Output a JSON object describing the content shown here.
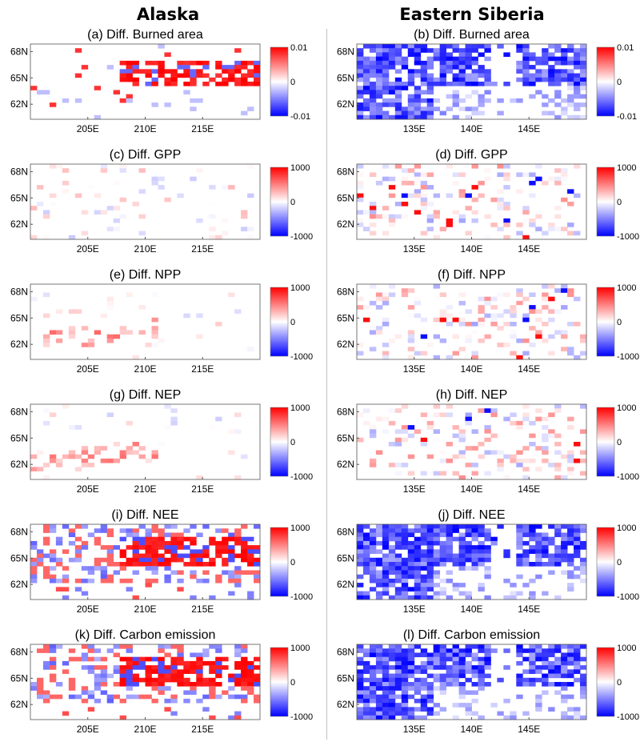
{
  "column_titles": [
    "Alaska",
    "Eastern Siberia"
  ],
  "chart_data": [
    {
      "type": "heatmap",
      "panel": "(a)",
      "title": "(a) Diff. Burned area",
      "region": "Alaska",
      "x_ticks": [
        "205E",
        "210E",
        "215E"
      ],
      "y_ticks": [
        "68N",
        "65N",
        "62N"
      ],
      "xlim": [
        200.5,
        218.5
      ],
      "ylim": [
        60.5,
        69
      ],
      "colorbar": {
        "ticks": [
          "0.01",
          "0",
          "-0.01"
        ],
        "range": [
          -0.01,
          0.01
        ],
        "colors": [
          "#0000ff",
          "#ffffff",
          "#ff0000"
        ]
      },
      "pattern": "red-dominant (increase) mainly along 64–66N, 208–218E"
    },
    {
      "type": "heatmap",
      "panel": "(b)",
      "title": "(b) Diff. Burned area",
      "region": "Eastern Siberia",
      "x_ticks": [
        "135E",
        "140E",
        "145E"
      ],
      "y_ticks": [
        "68N",
        "65N",
        "62N"
      ],
      "xlim": [
        130.5,
        148.5
      ],
      "ylim": [
        60.5,
        69
      ],
      "colorbar": {
        "ticks": [
          "0.01",
          "0",
          "-0.01"
        ],
        "range": [
          -0.01,
          0.01
        ],
        "colors": [
          "#0000ff",
          "#ffffff",
          "#ff0000"
        ]
      },
      "pattern": "blue-dominant (decrease) across most of the domain"
    },
    {
      "type": "heatmap",
      "panel": "(c)",
      "title": "(c) Diff. GPP",
      "region": "Alaska",
      "x_ticks": [
        "205E",
        "210E",
        "215E"
      ],
      "y_ticks": [
        "68N",
        "65N",
        "62N"
      ],
      "xlim": [
        200.5,
        218.5
      ],
      "ylim": [
        60.5,
        69
      ],
      "colorbar": {
        "ticks": [
          "1000",
          "0",
          "-1000"
        ],
        "range": [
          -1000,
          1000
        ],
        "colors": [
          "#0000ff",
          "#ffffff",
          "#ff0000"
        ]
      },
      "pattern": "sparse weak values"
    },
    {
      "type": "heatmap",
      "panel": "(d)",
      "title": "(d) Diff. GPP",
      "region": "Eastern Siberia",
      "x_ticks": [
        "135E",
        "140E",
        "145E"
      ],
      "y_ticks": [
        "68N",
        "65N",
        "62N"
      ],
      "xlim": [
        130.5,
        148.5
      ],
      "ylim": [
        60.5,
        69
      ],
      "colorbar": {
        "ticks": [
          "1000",
          "0",
          "-1000"
        ],
        "range": [
          -1000,
          1000
        ],
        "colors": [
          "#0000ff",
          "#ffffff",
          "#ff0000"
        ]
      },
      "pattern": "scattered mixed values"
    },
    {
      "type": "heatmap",
      "panel": "(e)",
      "title": "(e) Diff. NPP",
      "region": "Alaska",
      "x_ticks": [
        "205E",
        "210E",
        "215E"
      ],
      "y_ticks": [
        "68N",
        "65N",
        "62N"
      ],
      "xlim": [
        200.5,
        218.5
      ],
      "ylim": [
        60.5,
        69
      ],
      "colorbar": {
        "ticks": [
          "1000",
          "0",
          "-1000"
        ],
        "range": [
          -1000,
          1000
        ],
        "colors": [
          "#0000ff",
          "#ffffff",
          "#ff0000"
        ]
      },
      "pattern": "weak positive band along 62–64N"
    },
    {
      "type": "heatmap",
      "panel": "(f)",
      "title": "(f) Diff. NPP",
      "region": "Eastern Siberia",
      "x_ticks": [
        "135E",
        "140E",
        "145E"
      ],
      "y_ticks": [
        "68N",
        "65N",
        "62N"
      ],
      "xlim": [
        130.5,
        148.5
      ],
      "ylim": [
        60.5,
        69
      ],
      "colorbar": {
        "ticks": [
          "1000",
          "0",
          "-1000"
        ],
        "range": [
          -1000,
          1000
        ],
        "colors": [
          "#0000ff",
          "#ffffff",
          "#ff0000"
        ]
      },
      "pattern": "scattered mixed values"
    },
    {
      "type": "heatmap",
      "panel": "(g)",
      "title": "(g) Diff. NEP",
      "region": "Alaska",
      "x_ticks": [
        "205E",
        "210E",
        "215E"
      ],
      "y_ticks": [
        "68N",
        "65N",
        "62N"
      ],
      "xlim": [
        200.5,
        218.5
      ],
      "ylim": [
        60.5,
        69
      ],
      "colorbar": {
        "ticks": [
          "1000",
          "0",
          "-1000"
        ],
        "range": [
          -1000,
          1000
        ],
        "colors": [
          "#0000ff",
          "#ffffff",
          "#ff0000"
        ]
      },
      "pattern": "weak positive band along 62–64N"
    },
    {
      "type": "heatmap",
      "panel": "(h)",
      "title": "(h) Diff. NEP",
      "region": "Eastern Siberia",
      "x_ticks": [
        "135E",
        "140E",
        "145E"
      ],
      "y_ticks": [
        "68N",
        "65N",
        "62N"
      ],
      "xlim": [
        130.5,
        148.5
      ],
      "ylim": [
        60.5,
        69
      ],
      "colorbar": {
        "ticks": [
          "1000",
          "0",
          "-1000"
        ],
        "range": [
          -1000,
          1000
        ],
        "colors": [
          "#0000ff",
          "#ffffff",
          "#ff0000"
        ]
      },
      "pattern": "scattered mixed values"
    },
    {
      "type": "heatmap",
      "panel": "(i)",
      "title": "(i) Diff. NEE",
      "region": "Alaska",
      "x_ticks": [
        "205E",
        "210E",
        "215E"
      ],
      "y_ticks": [
        "68N",
        "65N",
        "62N"
      ],
      "xlim": [
        200.5,
        218.5
      ],
      "ylim": [
        60.5,
        69
      ],
      "colorbar": {
        "ticks": [
          "1000",
          "0",
          "-1000"
        ],
        "range": [
          -1000,
          1000
        ],
        "colors": [
          "#0000ff",
          "#ffffff",
          "#ff0000"
        ]
      },
      "pattern": "strong red band 64–66N east of 208E, mixed blue/red elsewhere"
    },
    {
      "type": "heatmap",
      "panel": "(j)",
      "title": "(j) Diff. NEE",
      "region": "Eastern Siberia",
      "x_ticks": [
        "135E",
        "140E",
        "145E"
      ],
      "y_ticks": [
        "68N",
        "65N",
        "62N"
      ],
      "xlim": [
        130.5,
        148.5
      ],
      "ylim": [
        60.5,
        69
      ],
      "colorbar": {
        "ticks": [
          "1000",
          "0",
          "-1000"
        ],
        "range": [
          -1000,
          1000
        ],
        "colors": [
          "#0000ff",
          "#ffffff",
          "#ff0000"
        ]
      },
      "pattern": "blue-dominant across most of the domain"
    },
    {
      "type": "heatmap",
      "panel": "(k)",
      "title": "(k) Diff. Carbon emission",
      "region": "Alaska",
      "x_ticks": [
        "205E",
        "210E",
        "215E"
      ],
      "y_ticks": [
        "68N",
        "65N",
        "62N"
      ],
      "xlim": [
        200.5,
        218.5
      ],
      "ylim": [
        60.5,
        69
      ],
      "colorbar": {
        "ticks": [
          "1000",
          "0",
          "-1000"
        ],
        "range": [
          -1000,
          1000
        ],
        "colors": [
          "#0000ff",
          "#ffffff",
          "#ff0000"
        ]
      },
      "pattern": "strong red band 64–66N east of 208E, mixed blue/red elsewhere"
    },
    {
      "type": "heatmap",
      "panel": "(l)",
      "title": "(l) Diff. Carbon emission",
      "region": "Eastern Siberia",
      "x_ticks": [
        "135E",
        "140E",
        "145E"
      ],
      "y_ticks": [
        "68N",
        "65N",
        "62N"
      ],
      "xlim": [
        130.5,
        148.5
      ],
      "ylim": [
        60.5,
        69
      ],
      "colorbar": {
        "ticks": [
          "1000",
          "0",
          "-1000"
        ],
        "range": [
          -1000,
          1000
        ],
        "colors": [
          "#0000ff",
          "#ffffff",
          "#ff0000"
        ]
      },
      "pattern": "blue-dominant across most of the domain"
    }
  ]
}
